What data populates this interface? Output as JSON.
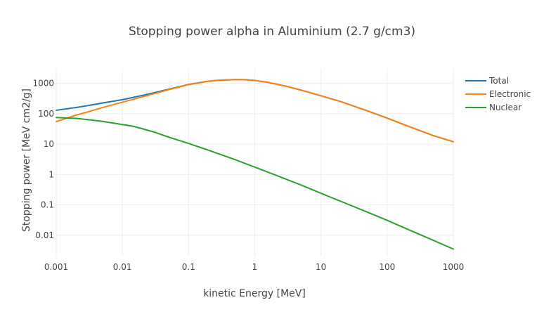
{
  "chart_data": {
    "type": "line",
    "title": "Stopping power alpha in Aluminium (2.7 g/cm3)",
    "xlabel": "kinetic Energy [MeV]",
    "ylabel": "Stopping power [MeV cm2/g]",
    "xscale": "log",
    "yscale": "log",
    "xlim": [
      0.001,
      1000
    ],
    "ylim": [
      0.002,
      3000
    ],
    "x_ticks": [
      0.001,
      0.01,
      0.1,
      1,
      10,
      100,
      1000
    ],
    "x_tick_labels": [
      "0.001",
      "0.01",
      "0.1",
      "1",
      "10",
      "100",
      "1000"
    ],
    "y_ticks": [
      0.01,
      0.1,
      1,
      10,
      100,
      1000
    ],
    "y_tick_labels": [
      "0.01",
      "0.1",
      "1",
      "10",
      "100",
      "1000"
    ],
    "grid": true,
    "legend_position": "top-right",
    "series": [
      {
        "name": "Total",
        "color": "#1f77b4",
        "x": [
          0.001,
          0.002,
          0.003,
          0.005,
          0.01,
          0.02,
          0.05,
          0.1,
          0.2,
          0.3,
          0.5,
          0.7,
          1,
          1.5,
          2,
          3,
          5,
          10,
          20,
          50,
          100,
          200,
          500,
          1000
        ],
        "y": [
          130,
          160,
          185,
          225,
          290,
          400,
          640,
          920,
          1180,
          1280,
          1330,
          1320,
          1250,
          1100,
          970,
          800,
          600,
          390,
          250,
          125,
          72,
          40,
          19,
          12
        ]
      },
      {
        "name": "Electronic",
        "color": "#ff7f0e",
        "x": [
          0.001,
          0.002,
          0.003,
          0.005,
          0.01,
          0.02,
          0.05,
          0.1,
          0.2,
          0.3,
          0.5,
          0.7,
          1,
          1.5,
          2,
          3,
          5,
          10,
          20,
          50,
          100,
          200,
          500,
          1000
        ],
        "y": [
          55,
          90,
          115,
          160,
          240,
          360,
          620,
          905,
          1170,
          1275,
          1325,
          1318,
          1248,
          1099,
          969,
          800,
          600,
          390,
          250,
          125,
          72,
          40,
          19,
          12
        ]
      },
      {
        "name": "Nuclear",
        "color": "#2ca02c",
        "x": [
          0.001,
          0.002,
          0.003,
          0.005,
          0.01,
          0.015,
          0.02,
          0.03,
          0.05,
          0.1,
          0.2,
          0.5,
          1,
          2,
          5,
          10,
          20,
          50,
          100,
          200,
          500,
          1000
        ],
        "y": [
          75,
          70,
          64,
          56,
          44,
          38,
          32,
          25,
          17,
          10.5,
          6.3,
          3.1,
          1.75,
          0.98,
          0.45,
          0.24,
          0.13,
          0.058,
          0.031,
          0.016,
          0.0068,
          0.0035
        ]
      }
    ]
  }
}
